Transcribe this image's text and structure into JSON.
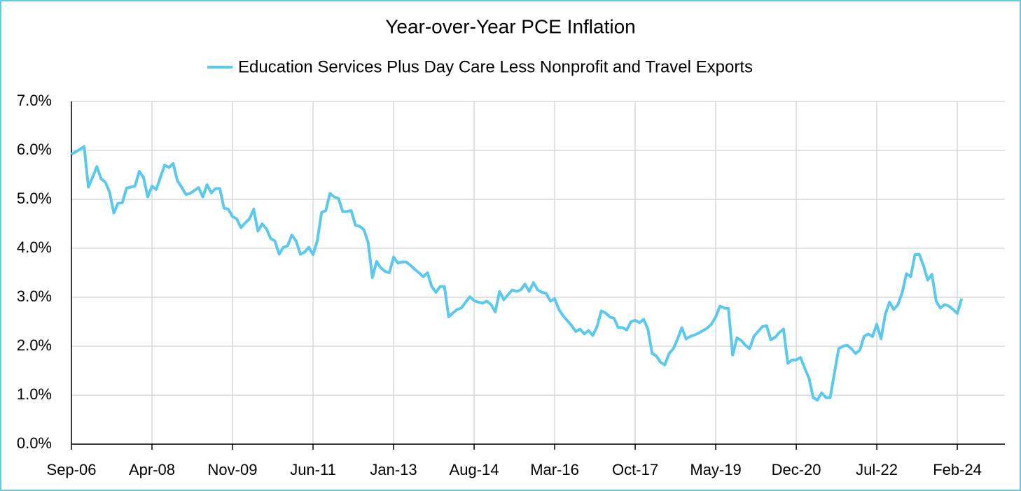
{
  "chart_data": {
    "type": "line",
    "title": "Year-over-Year PCE Inflation",
    "categories": [
      "Sep-06",
      null,
      null,
      null,
      null,
      null,
      null,
      null,
      null,
      null,
      null,
      null,
      null,
      null,
      null,
      null,
      null,
      null,
      null,
      "Apr-08",
      null,
      null,
      null,
      null,
      null,
      null,
      null,
      null,
      null,
      null,
      null,
      null,
      null,
      null,
      null,
      null,
      null,
      null,
      "Nov-09",
      null,
      null,
      null,
      null,
      null,
      null,
      null,
      null,
      null,
      null,
      null,
      null,
      null,
      null,
      null,
      null,
      null,
      null,
      "Jun-11",
      null,
      null,
      null,
      null,
      null,
      null,
      null,
      null,
      null,
      null,
      null,
      null,
      null,
      null,
      null,
      null,
      null,
      null,
      "Jan-13",
      null,
      null,
      null,
      null,
      null,
      null,
      null,
      null,
      null,
      null,
      null,
      null,
      null,
      null,
      null,
      null,
      null,
      null,
      "Aug-14",
      null,
      null,
      null,
      null,
      null,
      null,
      null,
      null,
      null,
      null,
      null,
      null,
      null,
      null,
      null,
      null,
      null,
      null,
      "Mar-16",
      null,
      null,
      null,
      null,
      null,
      null,
      null,
      null,
      null,
      null,
      null,
      null,
      null,
      null,
      null,
      null,
      null,
      null,
      "Oct-17",
      null,
      null,
      null,
      null,
      null,
      null,
      null,
      null,
      null,
      null,
      null,
      null,
      null,
      null,
      null,
      null,
      null,
      null,
      "May-19",
      null,
      null,
      null,
      null,
      null,
      null,
      null,
      null,
      null,
      null,
      null,
      null,
      null,
      null,
      null,
      null,
      null,
      null,
      "Dec-20",
      null,
      null,
      null,
      null,
      null,
      null,
      null,
      null,
      null,
      null,
      null,
      null,
      null,
      null,
      null,
      null,
      null,
      null,
      "Jul-22",
      null,
      null,
      null,
      null,
      null,
      null,
      null,
      null,
      null,
      null,
      null,
      null,
      null,
      null,
      null,
      null,
      null,
      null,
      "Feb-24",
      null
    ],
    "series": [
      {
        "name": "Education Services Plus Day Care Less Nonprofit and Travel Exports",
        "color": "#5bc8ee",
        "values": [
          5.92,
          5.97,
          6.02,
          6.08,
          5.25,
          5.45,
          5.67,
          5.42,
          5.35,
          5.15,
          4.72,
          4.92,
          4.93,
          5.23,
          5.25,
          5.27,
          5.57,
          5.45,
          5.05,
          5.27,
          5.2,
          5.45,
          5.7,
          5.65,
          5.73,
          5.38,
          5.25,
          5.1,
          5.12,
          5.18,
          5.24,
          5.05,
          5.3,
          5.13,
          5.22,
          5.22,
          4.82,
          4.8,
          4.65,
          4.6,
          4.42,
          4.52,
          4.6,
          4.8,
          4.35,
          4.5,
          4.4,
          4.2,
          4.15,
          3.88,
          4.02,
          4.05,
          4.27,
          4.15,
          3.88,
          3.92,
          4.02,
          3.87,
          4.15,
          4.73,
          4.77,
          5.12,
          5.05,
          5.02,
          4.75,
          4.75,
          4.77,
          4.47,
          4.45,
          4.38,
          4.12,
          3.4,
          3.73,
          3.6,
          3.53,
          3.5,
          3.82,
          3.7,
          3.72,
          3.72,
          3.65,
          3.57,
          3.5,
          3.42,
          3.5,
          3.22,
          3.1,
          3.22,
          3.22,
          2.6,
          2.68,
          2.75,
          2.78,
          2.9,
          3.01,
          2.93,
          2.9,
          2.88,
          2.92,
          2.85,
          2.7,
          3.12,
          2.95,
          3.05,
          3.15,
          3.12,
          3.15,
          3.27,
          3.12,
          3.3,
          3.15,
          3.1,
          3.08,
          2.92,
          2.97,
          2.75,
          2.62,
          2.52,
          2.42,
          2.3,
          2.35,
          2.25,
          2.32,
          2.22,
          2.4,
          2.72,
          2.68,
          2.6,
          2.57,
          2.38,
          2.38,
          2.33,
          2.5,
          2.53,
          2.48,
          2.55,
          2.35,
          1.85,
          1.8,
          1.67,
          1.62,
          1.85,
          1.95,
          2.15,
          2.38,
          2.15,
          2.2,
          2.23,
          2.27,
          2.32,
          2.37,
          2.45,
          2.6,
          2.82,
          2.78,
          2.77,
          1.82,
          2.17,
          2.12,
          2.02,
          1.95,
          2.2,
          2.3,
          2.4,
          2.42,
          2.13,
          2.18,
          2.28,
          2.35,
          1.65,
          1.72,
          1.72,
          1.77,
          1.55,
          1.35,
          0.95,
          0.9,
          1.05,
          0.95,
          0.95,
          1.45,
          1.95,
          2.0,
          2.02,
          1.95,
          1.85,
          1.92,
          2.2,
          2.25,
          2.2,
          2.45,
          2.15,
          2.65,
          2.9,
          2.75,
          2.85,
          3.1,
          3.48,
          3.42,
          3.87,
          3.88,
          3.65,
          3.35,
          3.47,
          2.92,
          2.78,
          2.85,
          2.82,
          2.75,
          2.67,
          2.97
        ]
      }
    ],
    "ylim": [
      0,
      7
    ],
    "yticks": [
      {
        "value": 0,
        "label": "0.0%"
      },
      {
        "value": 1,
        "label": "1.0%"
      },
      {
        "value": 2,
        "label": "2.0%"
      },
      {
        "value": 3,
        "label": "3.0%"
      },
      {
        "value": 4,
        "label": "4.0%"
      },
      {
        "value": 5,
        "label": "5.0%"
      },
      {
        "value": 6,
        "label": "6.0%"
      },
      {
        "value": 7,
        "label": "7.0%"
      }
    ],
    "grid": true,
    "legend": "top"
  }
}
